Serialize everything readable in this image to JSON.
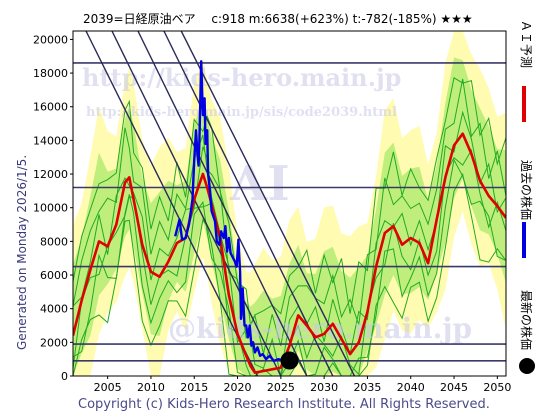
{
  "title": "2039=日経原油ベア　 c:918  m:6638(+623%)  t:-782(-185%)  ★★★",
  "side_text": "Generated on Monday 2026/1/5.",
  "copyright": "Copyright (c) Kids-Hero Research Institute. All Rights Reserved.",
  "watermarks": [
    "http://kids-hero.main.jp",
    "http://kids-hero.main.jp/sis/code2039.html",
    "AI",
    "@kids-hero.main.jp"
  ],
  "colors": {
    "ai": "#e00000",
    "past": "#0000e0",
    "band_outer": "#fffbb0",
    "band_inner": "#b8ec78",
    "band_lines": "#22aa22",
    "hline": "#3a3a6a",
    "diag": "#2a2a5a",
    "marker": "#000000"
  },
  "legend": [
    {
      "label": "ＡＩ予測",
      "color": "#e00000"
    },
    {
      "label": "過去の株価",
      "color": "#0000e0"
    },
    {
      "label": "最新の株価",
      "color": "#000000"
    }
  ],
  "chart_data": {
    "type": "line",
    "title": "2039=日経原油ベア　 c:918  m:6638(+623%)  t:-782(-185%)  ★★★",
    "xlim": [
      2001,
      2051
    ],
    "ylim": [
      0,
      20500
    ],
    "x_ticks": [
      2005,
      2010,
      2015,
      2020,
      2025,
      2030,
      2035,
      2040,
      2045,
      2050
    ],
    "y_ticks": [
      0,
      2000,
      4000,
      6000,
      8000,
      10000,
      12000,
      14000,
      16000,
      18000,
      20000
    ],
    "horizontal_lines": [
      900,
      1900,
      6500,
      11200,
      18600
    ],
    "trend_lines": [
      {
        "from": [
          2002.5,
          20500
        ],
        "to": [
          2022.3,
          0
        ]
      },
      {
        "from": [
          2005.5,
          20500
        ],
        "to": [
          2025.0,
          0
        ]
      },
      {
        "from": [
          2008.5,
          20500
        ],
        "to": [
          2028.0,
          0
        ]
      },
      {
        "from": [
          2011.5,
          20500
        ],
        "to": [
          2031.0,
          0
        ]
      },
      {
        "from": [
          2013.5,
          20500
        ],
        "to": [
          2033.5,
          0
        ]
      }
    ],
    "latest": {
      "x": 2026.0,
      "y": 918
    },
    "series": [
      {
        "name": "ＡＩ予測",
        "color": "#e00000",
        "points": [
          [
            2001,
            2400
          ],
          [
            2002,
            4500
          ],
          [
            2003,
            6300
          ],
          [
            2004,
            8000
          ],
          [
            2005,
            7700
          ],
          [
            2006,
            9000
          ],
          [
            2007,
            11500
          ],
          [
            2007.5,
            11800
          ],
          [
            2008,
            10500
          ],
          [
            2009,
            7800
          ],
          [
            2010,
            6200
          ],
          [
            2011,
            5900
          ],
          [
            2012,
            6800
          ],
          [
            2013,
            7900
          ],
          [
            2014,
            8200
          ],
          [
            2015,
            10500
          ],
          [
            2016,
            12000
          ],
          [
            2016.5,
            11200
          ],
          [
            2017,
            10200
          ],
          [
            2018,
            8200
          ],
          [
            2019,
            4800
          ],
          [
            2020,
            2500
          ],
          [
            2021,
            1200
          ],
          [
            2021.5,
            600
          ],
          [
            2022,
            200
          ],
          [
            2023,
            300
          ],
          [
            2024,
            400
          ],
          [
            2025,
            500
          ],
          [
            2026,
            1800
          ],
          [
            2027,
            3600
          ],
          [
            2028,
            3000
          ],
          [
            2029,
            2300
          ],
          [
            2030,
            2500
          ],
          [
            2031,
            3100
          ],
          [
            2032,
            2200
          ],
          [
            2033,
            1300
          ],
          [
            2034,
            2000
          ],
          [
            2035,
            3800
          ],
          [
            2036,
            6500
          ],
          [
            2037,
            8500
          ],
          [
            2038,
            8900
          ],
          [
            2039,
            7800
          ],
          [
            2040,
            8200
          ],
          [
            2041,
            7900
          ],
          [
            2042,
            6700
          ],
          [
            2043,
            9300
          ],
          [
            2044,
            11800
          ],
          [
            2045,
            13700
          ],
          [
            2046,
            14400
          ],
          [
            2047,
            13200
          ],
          [
            2048,
            11600
          ],
          [
            2049,
            10700
          ],
          [
            2050,
            10100
          ],
          [
            2051,
            9400
          ]
        ]
      },
      {
        "name": "過去の株価",
        "color": "#0000e0",
        "points": [
          [
            2012.8,
            8300
          ],
          [
            2013.3,
            9300
          ],
          [
            2013.6,
            8100
          ],
          [
            2014.0,
            8200
          ],
          [
            2014.4,
            9000
          ],
          [
            2014.8,
            10500
          ],
          [
            2015.0,
            12800
          ],
          [
            2015.2,
            14600
          ],
          [
            2015.4,
            13000
          ],
          [
            2015.5,
            12500
          ],
          [
            2015.6,
            14000
          ],
          [
            2015.8,
            18700
          ],
          [
            2016.0,
            15500
          ],
          [
            2016.2,
            16500
          ],
          [
            2016.3,
            13800
          ],
          [
            2016.5,
            14600
          ],
          [
            2016.6,
            12000
          ],
          [
            2016.8,
            11100
          ],
          [
            2017.0,
            9800
          ],
          [
            2017.2,
            9500
          ],
          [
            2017.4,
            9200
          ],
          [
            2017.6,
            8000
          ],
          [
            2017.9,
            7800
          ],
          [
            2018.1,
            8600
          ],
          [
            2018.4,
            8200
          ],
          [
            2018.6,
            8900
          ],
          [
            2018.8,
            7400
          ],
          [
            2019.0,
            8200
          ],
          [
            2019.2,
            7300
          ],
          [
            2019.5,
            7000
          ],
          [
            2019.7,
            6800
          ],
          [
            2019.9,
            6500
          ],
          [
            2020.1,
            8100
          ],
          [
            2020.3,
            6200
          ],
          [
            2020.4,
            3400
          ],
          [
            2020.6,
            5200
          ],
          [
            2020.8,
            3000
          ],
          [
            2021.0,
            3000
          ],
          [
            2021.2,
            2300
          ],
          [
            2021.4,
            3000
          ],
          [
            2021.6,
            1800
          ],
          [
            2021.8,
            2000
          ],
          [
            2022.0,
            1400
          ],
          [
            2022.3,
            1700
          ],
          [
            2022.6,
            1200
          ],
          [
            2022.9,
            1300
          ],
          [
            2023.3,
            1000
          ],
          [
            2023.7,
            1200
          ],
          [
            2024.2,
            900
          ],
          [
            2024.7,
            1000
          ],
          [
            2025.2,
            950
          ],
          [
            2025.6,
            930
          ],
          [
            2026.0,
            918
          ]
        ]
      }
    ]
  }
}
